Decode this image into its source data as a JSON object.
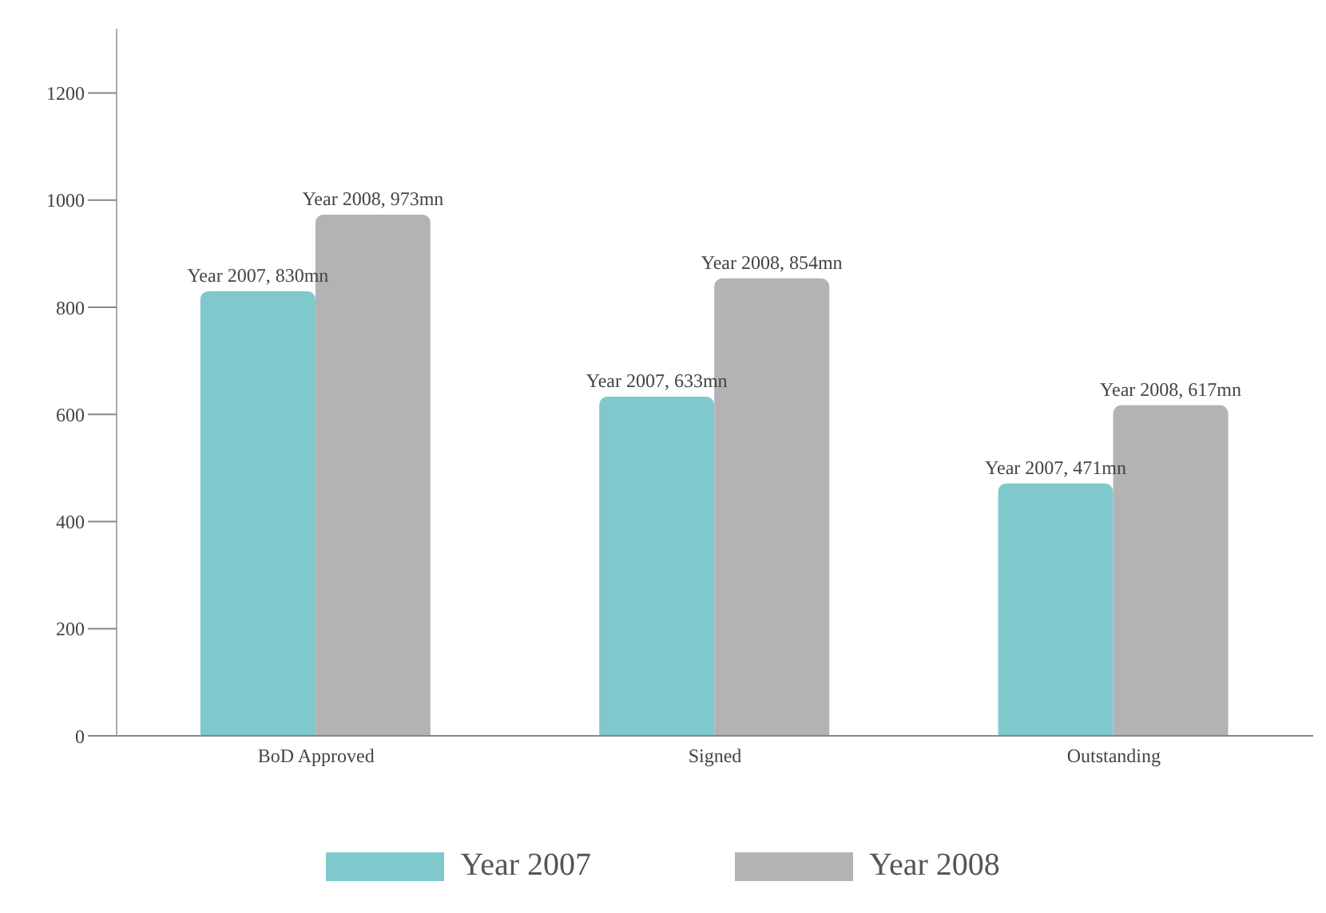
{
  "chart_data": {
    "type": "bar",
    "categories": [
      "BoD Approved",
      "Signed",
      "Outstanding"
    ],
    "series": [
      {
        "name": "Year 2007",
        "color": "#7fc9cc",
        "values": [
          830,
          633,
          471
        ],
        "value_labels": [
          "Year 2007, 830mn",
          "Year 2007, 633mn",
          "Year 2007, 471mn"
        ]
      },
      {
        "name": "Year 2008",
        "color": "#b3b3b6",
        "values": [
          973,
          854,
          617
        ],
        "value_labels": [
          "Year 2008, 973mn",
          "Year 2008, 854mn",
          "Year 2008, 617mn"
        ]
      }
    ],
    "ylim": [
      0,
      1320
    ],
    "yticks": [
      0,
      200,
      400,
      600,
      800,
      1000,
      1200
    ],
    "grid": false,
    "legend": "bottom"
  }
}
